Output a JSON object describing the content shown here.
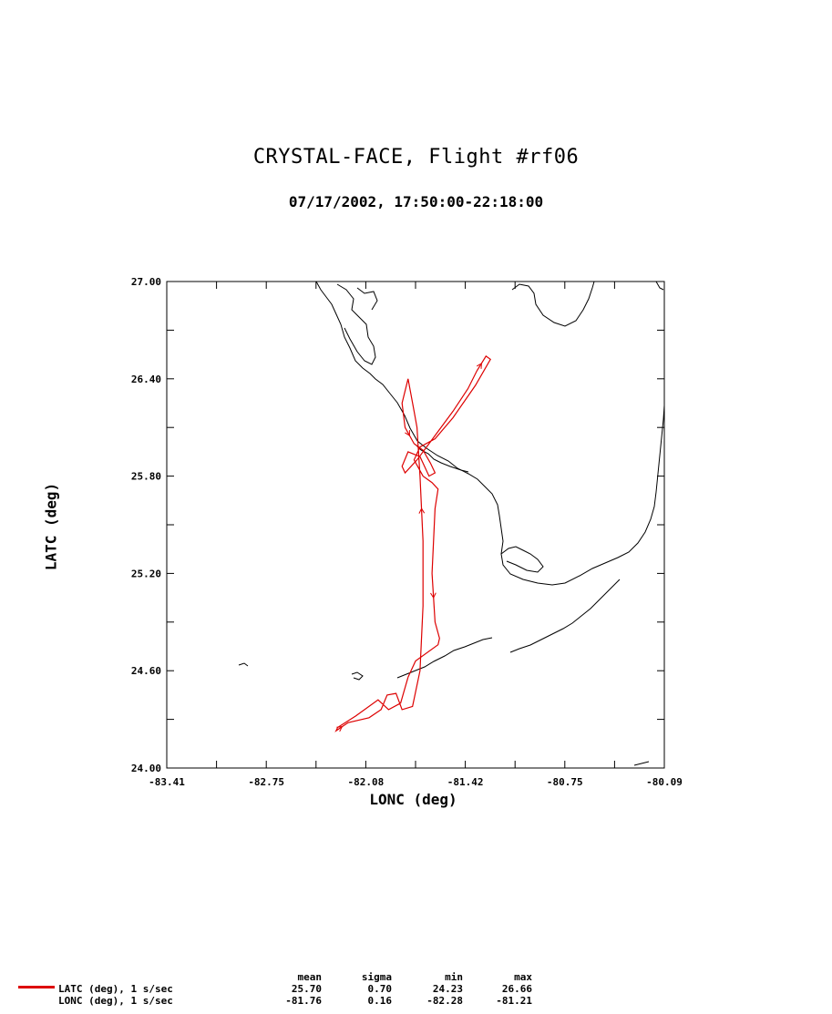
{
  "title": "CRYSTAL-FACE, Flight #rf06",
  "subtitle": "07/17/2002, 17:50:00-22:18:00",
  "chart_data": {
    "type": "line",
    "xlabel": "LONC (deg)",
    "ylabel": "LATC (deg)",
    "xlim": [
      -83.41,
      -80.09
    ],
    "ylim": [
      24.0,
      27.0
    ],
    "x_ticks": [
      "-83.41",
      "-82.75",
      "-82.08",
      "-81.42",
      "-80.75",
      "-80.09"
    ],
    "y_ticks": [
      "24.00",
      "24.60",
      "25.20",
      "25.80",
      "26.40",
      "27.00"
    ],
    "series": [
      {
        "color": "#dd0000",
        "points": [
          [
            -81.8,
            24.56
          ],
          [
            -81.85,
            24.4
          ],
          [
            -81.93,
            24.36
          ],
          [
            -82.0,
            24.42
          ],
          [
            -82.15,
            24.32
          ],
          [
            -82.27,
            24.25
          ],
          [
            -82.28,
            24.23
          ],
          [
            -82.2,
            24.28
          ],
          [
            -82.06,
            24.31
          ],
          [
            -81.98,
            24.36
          ],
          [
            -81.94,
            24.45
          ],
          [
            -81.88,
            24.46
          ],
          [
            -81.84,
            24.36
          ],
          [
            -81.77,
            24.38
          ],
          [
            -81.72,
            24.6
          ],
          [
            -81.7,
            25.0
          ],
          [
            -81.7,
            25.4
          ],
          [
            -81.72,
            25.8
          ],
          [
            -81.74,
            26.1
          ],
          [
            -81.76,
            26.2
          ],
          [
            -81.8,
            26.4
          ],
          [
            -81.84,
            26.25
          ],
          [
            -81.82,
            26.1
          ],
          [
            -81.76,
            26.0
          ],
          [
            -81.7,
            25.96
          ],
          [
            -81.65,
            25.88
          ],
          [
            -81.62,
            25.82
          ],
          [
            -81.66,
            25.8
          ],
          [
            -81.72,
            25.92
          ],
          [
            -81.8,
            25.95
          ],
          [
            -81.84,
            25.86
          ],
          [
            -81.82,
            25.82
          ],
          [
            -81.74,
            25.9
          ],
          [
            -81.66,
            26.0
          ],
          [
            -81.5,
            26.2
          ],
          [
            -81.4,
            26.34
          ],
          [
            -81.34,
            26.45
          ],
          [
            -81.28,
            26.54
          ],
          [
            -81.25,
            26.52
          ],
          [
            -81.35,
            26.36
          ],
          [
            -81.5,
            26.16
          ],
          [
            -81.62,
            26.03
          ],
          [
            -81.72,
            25.98
          ],
          [
            -81.76,
            25.9
          ],
          [
            -81.7,
            25.8
          ],
          [
            -81.64,
            25.76
          ],
          [
            -81.6,
            25.72
          ],
          [
            -81.62,
            25.6
          ],
          [
            -81.64,
            25.2
          ],
          [
            -81.62,
            24.9
          ],
          [
            -81.59,
            24.8
          ],
          [
            -81.6,
            24.76
          ],
          [
            -81.75,
            24.66
          ],
          [
            -81.8,
            24.56
          ]
        ]
      }
    ]
  },
  "stats": {
    "headers": {
      "mean": "mean",
      "sigma": "sigma",
      "min": "min",
      "max": "max"
    },
    "rows": [
      {
        "name": "LATC (deg), 1 s/sec",
        "mean": "25.70",
        "sigma": "0.70",
        "min": "24.23",
        "max": "26.66",
        "color": "#dd0000"
      },
      {
        "name": "LONC (deg), 1 s/sec",
        "mean": "-81.76",
        "sigma": "0.16",
        "min": "-82.28",
        "max": "-81.21"
      }
    ]
  }
}
